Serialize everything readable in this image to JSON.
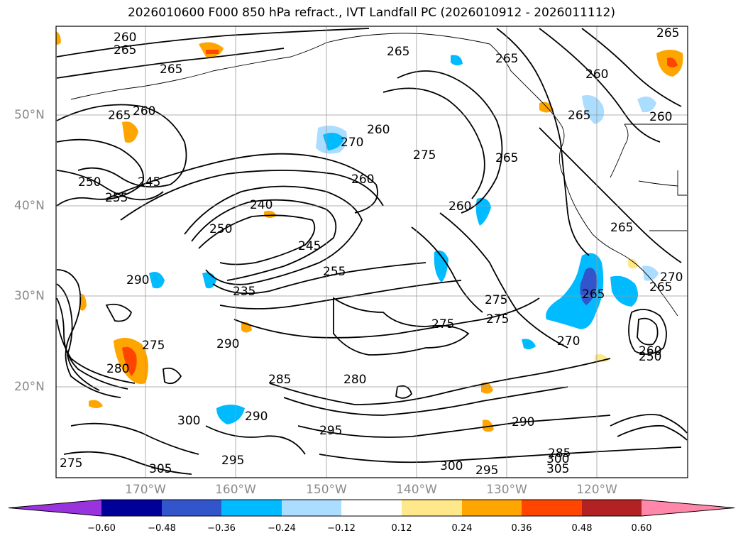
{
  "title": "2026010600 F000 850 hPa refract., IVT Landfall PC (2026010912 - 2026011112)",
  "lat_labels": [
    "50°N",
    "40°N",
    "30°N",
    "20°N"
  ],
  "lon_labels": [
    "170°W",
    "160°W",
    "150°W",
    "140°W",
    "130°W",
    "120°W"
  ],
  "contour_labels": [
    "260",
    "265",
    "265",
    "265",
    "265",
    "265",
    "260",
    "260",
    "265",
    "260",
    "265",
    "260",
    "270",
    "275",
    "265",
    "260",
    "250",
    "245",
    "255",
    "240",
    "250",
    "245",
    "260",
    "265",
    "235",
    "255",
    "290",
    "275",
    "275",
    "275",
    "270",
    "265",
    "270",
    "265",
    "290",
    "275",
    "285",
    "280",
    "290",
    "295",
    "300",
    "305",
    "295",
    "290",
    "295",
    "300",
    "305",
    "275",
    "285",
    "280",
    "300",
    "250",
    "260"
  ],
  "colorbar": {
    "ticks": [
      "−0.60",
      "−0.48",
      "−0.36",
      "−0.24",
      "−0.12",
      "0.12",
      "0.24",
      "0.36",
      "0.48",
      "0.60"
    ],
    "colors": [
      "#9933dd",
      "#000099",
      "#3355cc",
      "#00bbff",
      "#aaddff",
      "#ffffff",
      "#ffe88a",
      "#ffa500",
      "#ff4500",
      "#b22222",
      "#ff88aa"
    ]
  },
  "fill_colors": {
    "light_blue": "#aaddff",
    "cyan": "#00bbff",
    "blue": "#3355cc",
    "yellow": "#ffe88a",
    "orange": "#ffa500",
    "red_orange": "#ff4500"
  }
}
